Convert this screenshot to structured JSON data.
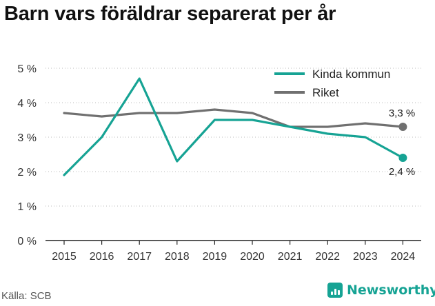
{
  "title": "Barn vars föräldrar separerat per år",
  "source": "Källa: SCB",
  "brand": {
    "name": "Newsworthy",
    "icon": "newsworthy-logo-icon"
  },
  "colors": {
    "teal": "#16a394",
    "grey": "#707070",
    "axis": "#222222",
    "grid": "#bbbbbb"
  },
  "chart_data": {
    "type": "line",
    "title": "Barn vars föräldrar separerat per år",
    "xlabel": "",
    "ylabel": "",
    "x": [
      2015,
      2016,
      2017,
      2018,
      2019,
      2020,
      2021,
      2022,
      2023,
      2024
    ],
    "ylim": [
      0,
      5
    ],
    "yticks": [
      0,
      1,
      2,
      3,
      4,
      5
    ],
    "ytick_labels": [
      "0 %",
      "1 %",
      "2 %",
      "3 %",
      "4 %",
      "5 %"
    ],
    "xtick_labels": [
      "2015",
      "2016",
      "2017",
      "2018",
      "2019",
      "2020",
      "2021",
      "2022",
      "2023",
      "2024"
    ],
    "grid": "y",
    "legend_position": "top-right",
    "series": [
      {
        "name": "Kinda kommun",
        "color": "#16a394",
        "values": [
          1.9,
          3.0,
          4.7,
          2.3,
          3.5,
          3.5,
          3.3,
          3.1,
          3.0,
          2.4
        ],
        "end_label": "2,4 %"
      },
      {
        "name": "Riket",
        "color": "#707070",
        "values": [
          3.7,
          3.6,
          3.7,
          3.7,
          3.8,
          3.7,
          3.3,
          3.3,
          3.4,
          3.3
        ],
        "end_label": "3,3 %"
      }
    ]
  }
}
